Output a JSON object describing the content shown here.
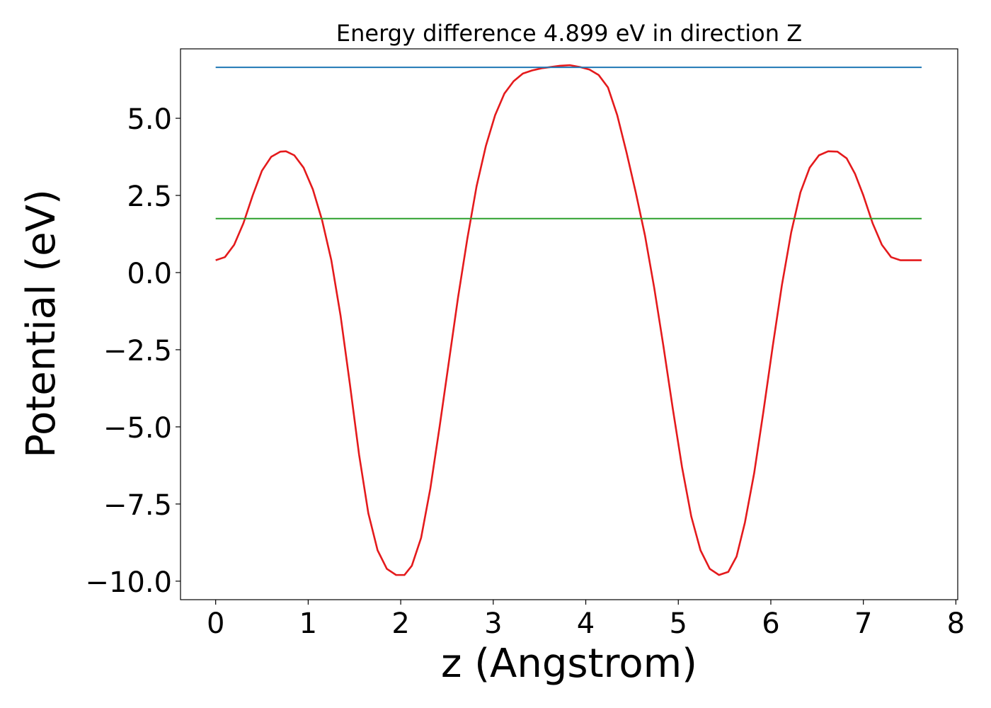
{
  "chart_data": {
    "type": "line",
    "title": "Energy difference 4.899 eV in direction Z",
    "xlabel": "z (Angstrom)",
    "ylabel": "Potential (eV)",
    "xlim": [
      -0.38,
      8.02
    ],
    "ylim": [
      -10.6,
      7.25
    ],
    "x_ticks": [
      0,
      1,
      2,
      3,
      4,
      5,
      6,
      7,
      8
    ],
    "x_tick_labels": [
      "0",
      "1",
      "2",
      "3",
      "4",
      "5",
      "6",
      "7",
      "8"
    ],
    "y_ticks": [
      5.0,
      2.5,
      0.0,
      -2.5,
      -5.0,
      -7.5,
      -10.0
    ],
    "y_tick_labels": [
      "5.0",
      "2.5",
      "0.0",
      "−2.5",
      "−5.0",
      "−7.5",
      "−10.0"
    ],
    "grid": false,
    "legend": "none",
    "series": [
      {
        "color": "#e41a1c",
        "x": [
          0.0,
          0.1,
          0.2,
          0.3,
          0.4,
          0.5,
          0.6,
          0.7,
          0.76,
          0.85,
          0.95,
          1.05,
          1.15,
          1.25,
          1.35,
          1.45,
          1.55,
          1.65,
          1.75,
          1.85,
          1.95,
          2.04,
          2.12,
          2.22,
          2.32,
          2.42,
          2.52,
          2.62,
          2.72,
          2.82,
          2.92,
          3.02,
          3.12,
          3.22,
          3.32,
          3.42,
          3.52,
          3.62,
          3.72,
          3.83,
          3.94,
          4.04,
          4.14,
          4.24,
          4.34,
          4.44,
          4.54,
          4.64,
          4.74,
          4.84,
          4.94,
          5.04,
          5.14,
          5.24,
          5.34,
          5.44,
          5.54,
          5.63,
          5.72,
          5.82,
          5.92,
          6.02,
          6.12,
          6.22,
          6.32,
          6.42,
          6.52,
          6.62,
          6.72,
          6.82,
          6.91,
          7.0,
          7.1,
          7.2,
          7.3,
          7.4,
          7.5,
          7.63
        ],
        "y": [
          0.4,
          0.5,
          0.9,
          1.6,
          2.5,
          3.3,
          3.75,
          3.92,
          3.93,
          3.8,
          3.4,
          2.7,
          1.7,
          0.4,
          -1.4,
          -3.6,
          -5.9,
          -7.8,
          -9.0,
          -9.6,
          -9.8,
          -9.8,
          -9.5,
          -8.6,
          -7.0,
          -5.0,
          -2.9,
          -0.8,
          1.1,
          2.8,
          4.1,
          5.1,
          5.8,
          6.2,
          6.45,
          6.55,
          6.62,
          6.66,
          6.7,
          6.72,
          6.66,
          6.58,
          6.4,
          6.0,
          5.1,
          3.9,
          2.6,
          1.2,
          -0.5,
          -2.4,
          -4.4,
          -6.3,
          -7.9,
          -9.0,
          -9.6,
          -9.8,
          -9.7,
          -9.2,
          -8.1,
          -6.5,
          -4.5,
          -2.4,
          -0.4,
          1.3,
          2.6,
          3.4,
          3.8,
          3.93,
          3.92,
          3.7,
          3.2,
          2.5,
          1.6,
          0.9,
          0.5,
          0.4,
          0.4,
          0.4
        ]
      },
      {
        "color": "#1f77b4",
        "x": [
          0.0,
          7.63
        ],
        "y": [
          6.65,
          6.65
        ]
      },
      {
        "color": "#2ca02c",
        "x": [
          0.0,
          7.63
        ],
        "y": [
          1.75,
          1.75
        ]
      }
    ]
  }
}
